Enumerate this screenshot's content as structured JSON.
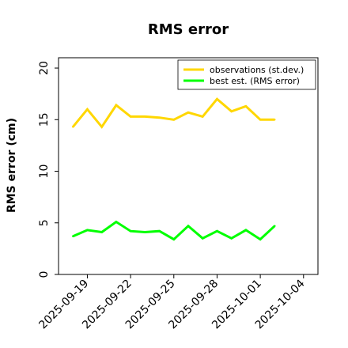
{
  "chart_data": {
    "type": "line",
    "title": "RMS error",
    "xlabel": "",
    "ylabel": "RMS error (cm)",
    "ylim": [
      0,
      21
    ],
    "yticks": [
      0,
      5,
      10,
      15,
      20
    ],
    "xlim": [
      "2025-09-17",
      "2025-10-05"
    ],
    "xticks": [
      "2025-09-19",
      "2025-09-22",
      "2025-09-25",
      "2025-09-28",
      "2025-10-01",
      "2025-10-04"
    ],
    "highlighted_xtick": "2025-09-25",
    "highlight_color": "#008000",
    "grid": false,
    "legend_position": "top-right",
    "x": [
      "2025-09-18",
      "2025-09-19",
      "2025-09-20",
      "2025-09-21",
      "2025-09-22",
      "2025-09-23",
      "2025-09-24",
      "2025-09-25",
      "2025-09-26",
      "2025-09-27",
      "2025-09-28",
      "2025-09-29",
      "2025-09-30",
      "2025-10-01",
      "2025-10-02"
    ],
    "series": [
      {
        "name": "observations (st.dev.)",
        "color": "#FFD700",
        "values": [
          14.3,
          16.0,
          14.3,
          16.4,
          15.3,
          15.3,
          15.2,
          15.0,
          15.7,
          15.3,
          17.0,
          15.8,
          16.3,
          15.0,
          15.0
        ]
      },
      {
        "name": "best est. (RMS error)",
        "color": "#00FF00",
        "values": [
          3.7,
          4.3,
          4.1,
          5.1,
          4.2,
          4.1,
          4.2,
          3.4,
          4.7,
          3.5,
          4.2,
          3.5,
          4.3,
          3.4,
          4.7
        ]
      }
    ]
  }
}
